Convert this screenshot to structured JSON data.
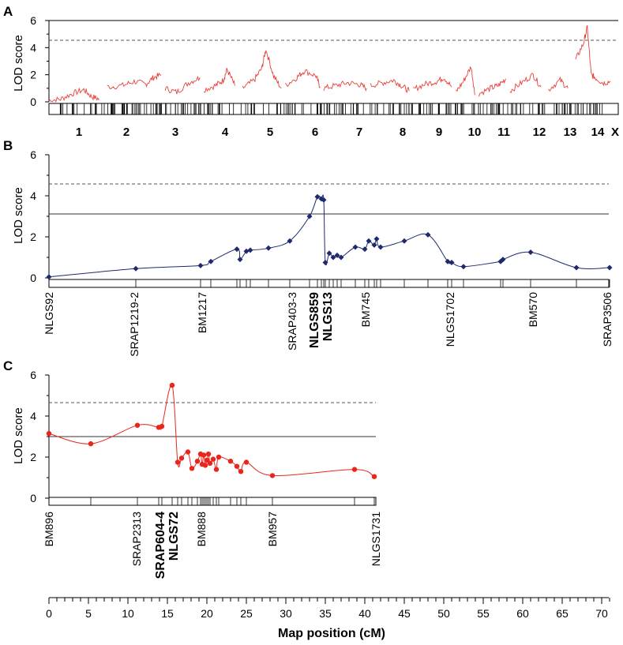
{
  "chart_data": [
    {
      "panel": "A",
      "type": "line",
      "ylabel": "LOD score",
      "ylim": [
        0,
        6
      ],
      "yticks": [
        "0",
        "2",
        "4",
        "6"
      ],
      "threshold_dashed": 4.5,
      "series_color": "#e8413a",
      "chromosomes": [
        "1",
        "2",
        "3",
        "4",
        "5",
        "6",
        "7",
        "8",
        "9",
        "10",
        "11",
        "12",
        "13",
        "14",
        "X"
      ],
      "profile_note": "genome-wide LOD profile; values below approximate the plotted trace",
      "profile": [
        {
          "chr": "1",
          "x": [
            0,
            0.3,
            0.6,
            0.9,
            1.1,
            1.3
          ],
          "y": [
            0.1,
            0.2,
            0.6,
            0.9,
            0.4,
            0.2
          ]
        },
        {
          "chr": "2",
          "x": [
            1.5,
            1.9,
            2.2,
            2.5,
            2.7,
            2.9
          ],
          "y": [
            1.1,
            1.2,
            1.5,
            1.3,
            1.8,
            2.0
          ]
        },
        {
          "chr": "3",
          "x": [
            3.0,
            3.3,
            3.6,
            3.9
          ],
          "y": [
            1.0,
            0.7,
            1.4,
            1.8
          ]
        },
        {
          "chr": "4",
          "x": [
            4.0,
            4.3,
            4.5,
            4.6,
            4.8
          ],
          "y": [
            0.9,
            1.2,
            1.6,
            2.4,
            1.2
          ]
        },
        {
          "chr": "5",
          "x": [
            5.0,
            5.3,
            5.5,
            5.6,
            5.8,
            6.0
          ],
          "y": [
            1.0,
            1.6,
            2.5,
            3.9,
            1.9,
            1.0
          ]
        },
        {
          "chr": "6",
          "x": [
            6.1,
            6.4,
            6.6,
            6.9,
            7.0
          ],
          "y": [
            1.2,
            1.8,
            2.3,
            1.9,
            1.1
          ]
        },
        {
          "chr": "7",
          "x": [
            7.1,
            7.4,
            7.7,
            8.0,
            8.2
          ],
          "y": [
            1.0,
            1.2,
            1.4,
            1.3,
            1.0
          ]
        },
        {
          "chr": "8",
          "x": [
            8.3,
            8.6,
            8.9,
            9.1,
            9.3
          ],
          "y": [
            1.2,
            1.4,
            1.6,
            1.2,
            0.8
          ]
        },
        {
          "chr": "9",
          "x": [
            9.4,
            9.7,
            10.0,
            10.2,
            10.4
          ],
          "y": [
            0.9,
            1.3,
            1.5,
            1.8,
            1.1
          ]
        },
        {
          "chr": "10",
          "x": [
            10.5,
            10.7,
            10.9,
            11.0
          ],
          "y": [
            0.7,
            1.5,
            2.6,
            0.5
          ]
        },
        {
          "chr": "11",
          "x": [
            11.1,
            11.4,
            11.6,
            11.8
          ],
          "y": [
            0.6,
            1.0,
            1.2,
            1.7
          ]
        },
        {
          "chr": "12",
          "x": [
            11.9,
            12.2,
            12.5,
            12.7
          ],
          "y": [
            0.8,
            1.4,
            2.0,
            1.1
          ]
        },
        {
          "chr": "13",
          "x": [
            12.9,
            13.2,
            13.4
          ],
          "y": [
            0.9,
            1.6,
            1.0
          ]
        },
        {
          "chr": "14",
          "x": [
            13.6,
            13.8,
            13.9,
            14.0,
            14.1,
            14.3,
            14.5
          ],
          "y": [
            3.1,
            4.3,
            5.5,
            2.0,
            1.8,
            1.4,
            1.5
          ]
        }
      ]
    },
    {
      "panel": "B",
      "type": "line",
      "ylabel": "LOD score",
      "ylim": [
        0,
        6
      ],
      "yticks": [
        "0",
        "2",
        "4",
        "6"
      ],
      "threshold_dashed": 4.5,
      "threshold_solid": 3.1,
      "series_color": "#1f2a6e",
      "marker": "diamond",
      "x": [
        0,
        11.0,
        19.2,
        20.5,
        23.8,
        24.2,
        25.0,
        25.5,
        27.8,
        30.5,
        33.0,
        34.0,
        34.5,
        34.8,
        35.0,
        35.5,
        36.0,
        36.5,
        37.0,
        38.8,
        40.0,
        40.5,
        41.2,
        41.5,
        42.0,
        45.0,
        48.0,
        50.5,
        51.0,
        52.5,
        57.2,
        57.5,
        61.0,
        66.8,
        71.0
      ],
      "y": [
        0.05,
        0.45,
        0.6,
        0.8,
        1.4,
        0.9,
        1.3,
        1.35,
        1.45,
        1.8,
        3.0,
        3.95,
        3.85,
        3.8,
        0.75,
        1.2,
        1.0,
        1.1,
        1.0,
        1.5,
        1.4,
        1.8,
        1.6,
        1.9,
        1.5,
        1.8,
        2.1,
        0.8,
        0.75,
        0.55,
        0.8,
        0.9,
        1.25,
        0.5,
        0.5
      ],
      "marker_labels": [
        "NLGS92",
        "SRAP1219-2",
        "BM1217",
        "SRAP403-3",
        "NLGS859",
        "NLGS13",
        "BM745",
        "NLGS1702",
        "BM570",
        "SRAP3506"
      ],
      "bold_labels": [
        "NLGS859",
        "NLGS13"
      ]
    },
    {
      "panel": "C",
      "type": "line",
      "ylabel": "LOD score",
      "ylim": [
        0,
        6
      ],
      "yticks": [
        "0",
        "2",
        "4",
        "6"
      ],
      "threshold_dashed": 4.5,
      "threshold_solid": 2.9,
      "series_color": "#e8261c",
      "marker": "circle",
      "x": [
        0,
        5.3,
        11.2,
        13.9,
        14.3,
        15.6,
        16.3,
        16.8,
        17.6,
        18.1,
        18.8,
        19.2,
        19.4,
        19.6,
        19.8,
        20.0,
        20.2,
        20.4,
        20.8,
        21.2,
        21.5,
        23.0,
        23.8,
        24.3,
        25.0,
        28.3,
        38.7,
        41.2
      ],
      "y": [
        3.15,
        2.65,
        3.55,
        3.45,
        3.5,
        5.5,
        1.75,
        1.95,
        2.25,
        1.45,
        1.8,
        2.15,
        1.65,
        2.1,
        1.6,
        1.85,
        2.15,
        1.7,
        1.9,
        1.4,
        2.0,
        1.8,
        1.55,
        1.3,
        1.75,
        1.1,
        1.4,
        1.05
      ],
      "marker_labels": [
        "BM896",
        "SRAP2313",
        "SRAP604-4",
        "NLGS72",
        "BM888",
        "BM957",
        "NLGS1731"
      ],
      "bold_labels": [
        "SRAP604-4",
        "NLGS72"
      ]
    }
  ],
  "panel_labels": [
    "A",
    "B",
    "C"
  ],
  "x_axis": {
    "xlabel": "Map position (cM)",
    "ticks": [
      "0",
      "5",
      "10",
      "15",
      "20",
      "25",
      "30",
      "35",
      "40",
      "45",
      "50",
      "55",
      "60",
      "65",
      "70"
    ],
    "xlim": [
      0,
      71
    ]
  }
}
